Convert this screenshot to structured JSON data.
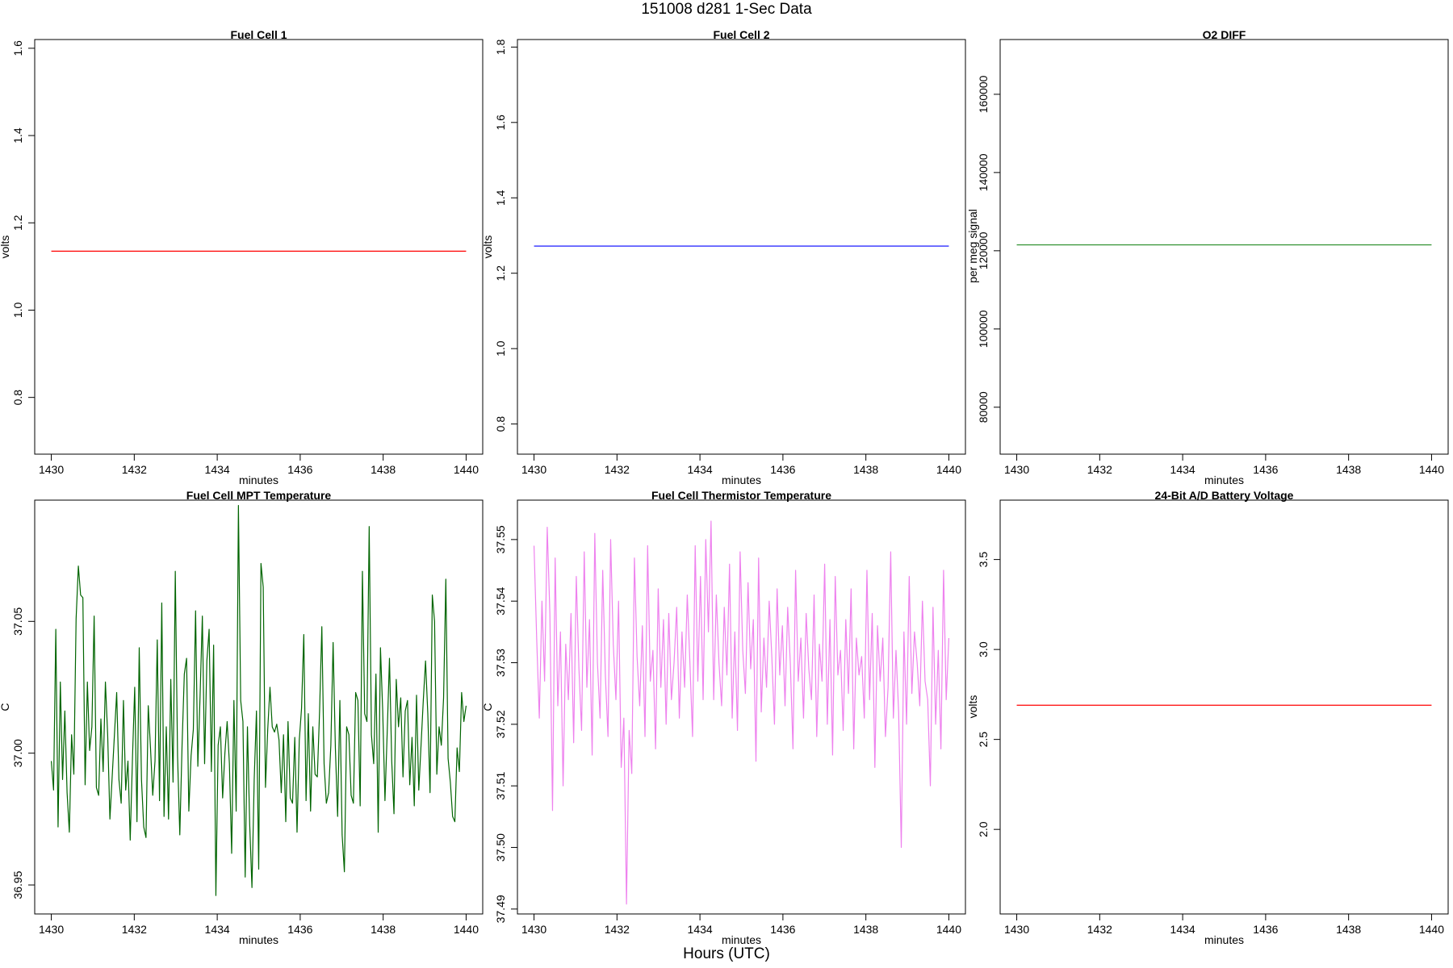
{
  "figure": {
    "title": "151008   d281   1-Sec Data",
    "xlabel": "Hours (UTC)"
  },
  "chart_data": [
    {
      "type": "line",
      "title": "Fuel Cell 1",
      "xlabel": "minutes",
      "ylabel": "volts",
      "color": "#ff0000",
      "xlim": [
        1429.6,
        1440.4
      ],
      "ylim": [
        0.67,
        1.62
      ],
      "xticks": [
        "1430",
        "1432",
        "1434",
        "1436",
        "1438",
        "1440"
      ],
      "yticks": [
        "0.8",
        "1.0",
        "1.2",
        "1.4",
        "1.6"
      ],
      "x": [
        1430,
        1440
      ],
      "y": [
        1.135,
        1.135
      ]
    },
    {
      "type": "line",
      "title": "Fuel Cell 2",
      "xlabel": "minutes",
      "ylabel": "volts",
      "color": "#0000ff",
      "xlim": [
        1429.6,
        1440.4
      ],
      "ylim": [
        0.72,
        1.82
      ],
      "xticks": [
        "1430",
        "1432",
        "1434",
        "1436",
        "1438",
        "1440"
      ],
      "yticks": [
        "0.8",
        "1.0",
        "1.2",
        "1.4",
        "1.6",
        "1.8"
      ],
      "x": [
        1430,
        1440
      ],
      "y": [
        1.272,
        1.272
      ]
    },
    {
      "type": "line",
      "title": "O2 DIFF",
      "xlabel": "minutes",
      "ylabel": "per meg signal",
      "color": "#228b22",
      "xlim": [
        1429.6,
        1440.4
      ],
      "ylim": [
        68000,
        174000
      ],
      "xticks": [
        "1430",
        "1432",
        "1434",
        "1436",
        "1438",
        "1440"
      ],
      "yticks": [
        "80000",
        "100000",
        "120000",
        "140000",
        "160000"
      ],
      "x": [
        1430,
        1440
      ],
      "y": [
        121500,
        121500
      ]
    },
    {
      "type": "line",
      "title": "Fuel Cell MPT Temperature",
      "xlabel": "minutes",
      "ylabel": "C",
      "color": "#006400",
      "xlim": [
        1429.6,
        1440.4
      ],
      "ylim": [
        36.939,
        37.096
      ],
      "xticks": [
        "1430",
        "1432",
        "1434",
        "1436",
        "1438",
        "1440"
      ],
      "yticks": [
        "36.95",
        "37.00",
        "37.05"
      ],
      "x_range": [
        1430,
        1440
      ],
      "y": [
        36.997,
        36.986,
        37.047,
        36.972,
        37.027,
        36.99,
        37.016,
        36.985,
        36.97,
        37.007,
        36.992,
        37.051,
        37.071,
        37.06,
        37.059,
        36.988,
        37.027,
        37.001,
        37.01,
        37.052,
        36.987,
        36.984,
        37.013,
        36.993,
        37.027,
        37.007,
        36.975,
        36.991,
        37.007,
        37.023,
        36.99,
        36.981,
        37.02,
        36.986,
        36.997,
        36.967,
        36.998,
        37.025,
        36.974,
        37.04,
        36.99,
        36.972,
        36.968,
        37.018,
        37.002,
        36.984,
        36.997,
        37.043,
        36.982,
        37.057,
        36.976,
        37.01,
        36.975,
        37.028,
        36.989,
        37.069,
        36.999,
        36.969,
        37.003,
        37.03,
        37.036,
        36.978,
        36.999,
        37.009,
        37.054,
        36.995,
        37.022,
        37.052,
        36.996,
        37.035,
        37.047,
        36.993,
        37.041,
        36.946,
        37.003,
        37.01,
        36.983,
        37.0,
        37.012,
        36.996,
        36.962,
        37.02,
        36.978,
        37.094,
        37.02,
        37.012,
        36.953,
        37.01,
        36.973,
        36.949,
        36.99,
        37.016,
        36.956,
        37.072,
        37.063,
        36.987,
        37.009,
        37.025,
        37.01,
        37.008,
        37.011,
        37.005,
        36.985,
        37.007,
        36.974,
        37.012,
        36.983,
        36.981,
        37.006,
        36.97,
        37.005,
        37.017,
        37.045,
        36.982,
        37.015,
        36.978,
        37.01,
        36.992,
        36.991,
        37.016,
        37.048,
        36.996,
        36.981,
        36.985,
        37.003,
        37.042,
        37.002,
        36.976,
        37.02,
        36.969,
        36.955,
        37.01,
        37.007,
        36.984,
        36.981,
        37.023,
        37.02,
        36.98,
        37.069,
        37.015,
        37.012,
        37.086,
        37.007,
        36.996,
        37.03,
        36.97,
        37.04,
        37.016,
        36.982,
        37.008,
        37.036,
        36.997,
        36.977,
        37.028,
        37.01,
        37.021,
        36.991,
        37.016,
        37.02,
        36.988,
        37.006,
        36.98,
        37.022,
        36.986,
        37.003,
        37.02,
        37.035,
        37.015,
        36.985,
        37.06,
        37.05,
        36.992,
        37.01,
        37.003,
        37.021,
        37.066,
        36.998,
        36.989,
        36.976,
        36.974,
        37.002,
        36.993,
        37.023,
        37.012,
        37.018
      ]
    },
    {
      "type": "line",
      "title": "Fuel Cell Thermistor Temperature",
      "xlabel": "minutes",
      "ylabel": "C",
      "color": "#ee82ee",
      "xlim": [
        1429.6,
        1440.4
      ],
      "ylim": [
        37.4892,
        37.5564
      ],
      "xticks": [
        "1430",
        "1432",
        "1434",
        "1436",
        "1438",
        "1440"
      ],
      "yticks": [
        "37.49",
        "37.50",
        "37.51",
        "37.52",
        "37.53",
        "37.54",
        "37.55"
      ],
      "x_range": [
        1430,
        1440
      ],
      "y": [
        37.549,
        37.534,
        37.521,
        37.54,
        37.527,
        37.552,
        37.538,
        37.506,
        37.547,
        37.523,
        37.535,
        37.51,
        37.533,
        37.524,
        37.538,
        37.517,
        37.544,
        37.529,
        37.519,
        37.548,
        37.526,
        37.537,
        37.515,
        37.551,
        37.53,
        37.521,
        37.545,
        37.528,
        37.518,
        37.55,
        37.533,
        37.524,
        37.54,
        37.513,
        37.521,
        37.4908,
        37.519,
        37.512,
        37.547,
        37.531,
        37.523,
        37.536,
        37.518,
        37.549,
        37.527,
        37.532,
        37.516,
        37.542,
        37.526,
        37.537,
        37.52,
        37.538,
        37.524,
        37.53,
        37.539,
        37.521,
        37.535,
        37.526,
        37.541,
        37.53,
        37.518,
        37.549,
        37.527,
        37.544,
        37.524,
        37.55,
        37.535,
        37.553,
        37.524,
        37.541,
        37.53,
        37.523,
        37.539,
        37.528,
        37.546,
        37.521,
        37.535,
        37.519,
        37.548,
        37.532,
        37.525,
        37.543,
        37.529,
        37.537,
        37.514,
        37.547,
        37.522,
        37.534,
        37.526,
        37.54,
        37.531,
        37.52,
        37.542,
        37.528,
        37.536,
        37.523,
        37.539,
        37.53,
        37.516,
        37.545,
        37.527,
        37.534,
        37.521,
        37.538,
        37.529,
        37.524,
        37.541,
        37.518,
        37.533,
        37.527,
        37.546,
        37.52,
        37.537,
        37.515,
        37.544,
        37.528,
        37.532,
        37.519,
        37.537,
        37.525,
        37.542,
        37.516,
        37.534,
        37.528,
        37.531,
        37.521,
        37.545,
        37.524,
        37.538,
        37.513,
        37.536,
        37.527,
        37.534,
        37.518,
        37.526,
        37.548,
        37.521,
        37.532,
        37.522,
        37.5,
        37.535,
        37.52,
        37.544,
        37.525,
        37.535,
        37.53,
        37.523,
        37.54,
        37.527,
        37.524,
        37.51,
        37.539,
        37.52,
        37.532,
        37.516,
        37.545,
        37.524,
        37.534
      ]
    },
    {
      "type": "line",
      "title": "24-Bit A/D Battery Voltage",
      "xlabel": "minutes",
      "ylabel": "volts",
      "color": "#ff0000",
      "xlim": [
        1429.6,
        1440.4
      ],
      "ylim": [
        1.53,
        3.83
      ],
      "xticks": [
        "1430",
        "1432",
        "1434",
        "1436",
        "1438",
        "1440"
      ],
      "yticks": [
        "2.0",
        "2.5",
        "3.0",
        "3.5"
      ],
      "x": [
        1430,
        1440
      ],
      "y": [
        2.69,
        2.69
      ]
    }
  ]
}
